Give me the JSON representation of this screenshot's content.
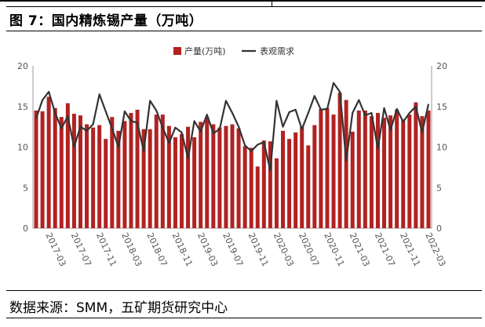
{
  "header": {
    "title": "图 7：国内精炼锡产量（万吨）"
  },
  "footer": {
    "source": "数据来源：SMM，五矿期货研究中心"
  },
  "chart_data": {
    "type": "bar+line",
    "legend": [
      {
        "label": "产量(万吨)",
        "kind": "bar",
        "color": "#b22222"
      },
      {
        "label": "表观需求",
        "kind": "line",
        "color": "#333333"
      }
    ],
    "ylim": [
      0,
      20
    ],
    "yticks": [
      0,
      5,
      10,
      15,
      20
    ],
    "y2ticks": [
      0,
      5,
      10,
      15,
      20
    ],
    "xtick_labels": [
      "2017-03",
      "2017-07",
      "2017-11",
      "2018-03",
      "2018-07",
      "2018-11",
      "2019-03",
      "2019-07",
      "2019-11",
      "2020-03",
      "2020-07",
      "2020-11",
      "2021-03",
      "2021-07",
      "2021-11",
      "2022-03"
    ],
    "xtick_start_index": 2,
    "xtick_step": 4,
    "categories": [
      "2017-01",
      "2017-02",
      "2017-03",
      "2017-04",
      "2017-05",
      "2017-06",
      "2017-07",
      "2017-08",
      "2017-09",
      "2017-10",
      "2017-11",
      "2017-12",
      "2018-01",
      "2018-02",
      "2018-03",
      "2018-04",
      "2018-05",
      "2018-06",
      "2018-07",
      "2018-08",
      "2018-09",
      "2018-10",
      "2018-11",
      "2018-12",
      "2019-01",
      "2019-02",
      "2019-03",
      "2019-04",
      "2019-05",
      "2019-06",
      "2019-07",
      "2019-08",
      "2019-09",
      "2019-10",
      "2019-11",
      "2019-12",
      "2020-01",
      "2020-02",
      "2020-03",
      "2020-04",
      "2020-05",
      "2020-06",
      "2020-07",
      "2020-08",
      "2020-09",
      "2020-10",
      "2020-11",
      "2020-12",
      "2021-01",
      "2021-02",
      "2021-03",
      "2021-04",
      "2021-05",
      "2021-06",
      "2021-07",
      "2021-08",
      "2021-09",
      "2021-10",
      "2021-11",
      "2021-12",
      "2022-01",
      "2022-02",
      "2022-03"
    ],
    "series": [
      {
        "name": "产量(万吨)",
        "type": "bar",
        "color": "#b22222",
        "values": [
          14.5,
          14.4,
          16.2,
          14.8,
          13.7,
          15.4,
          14.1,
          13.9,
          12.8,
          12.4,
          12.7,
          11.0,
          13.7,
          12.0,
          13.2,
          14.2,
          14.6,
          12.2,
          12.2,
          14.0,
          14.0,
          12.6,
          11.2,
          11.6,
          12.5,
          11.2,
          13.1,
          13.7,
          12.8,
          12.4,
          12.6,
          12.8,
          12.3,
          10.1,
          9.9,
          7.6,
          10.8,
          10.7,
          8.6,
          12.0,
          11.0,
          11.8,
          12.5,
          10.2,
          12.7,
          14.7,
          14.8,
          14.0,
          16.7,
          15.8,
          11.9,
          14.5,
          14.5,
          13.8,
          14.2,
          13.6,
          13.9,
          14.6,
          13.4,
          14.0,
          15.5,
          13.8,
          14.5
        ]
      },
      {
        "name": "表观需求",
        "type": "line",
        "color": "#333333",
        "values": [
          13.5,
          15.8,
          16.8,
          14.2,
          12.3,
          13.8,
          10.0,
          12.5,
          12.0,
          12.8,
          16.5,
          14.4,
          12.3,
          10.0,
          14.4,
          13.2,
          13.0,
          9.5,
          15.7,
          14.5,
          12.4,
          10.5,
          12.4,
          11.8,
          8.6,
          13.2,
          11.9,
          14.0,
          11.7,
          12.2,
          15.7,
          14.2,
          12.5,
          10.2,
          9.5,
          10.3,
          10.6,
          7.1,
          15.7,
          12.5,
          14.3,
          14.6,
          12.2,
          14.2,
          16.3,
          14.6,
          14.7,
          17.9,
          16.8,
          8.3,
          14.2,
          15.8,
          13.9,
          14.2,
          9.8,
          14.8,
          12.1,
          14.7,
          13.1,
          14.2,
          15.0,
          11.8,
          15.3
        ]
      }
    ]
  }
}
